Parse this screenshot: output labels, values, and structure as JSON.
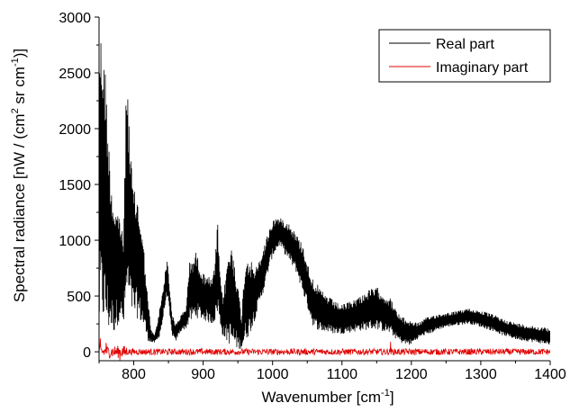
{
  "chart_data": {
    "type": "line",
    "xlabel_main": "Wavenumber [cm",
    "xlabel_sup": "-1",
    "xlabel_end": "]",
    "ylabel_main": "Spectral radiance [nW / (cm",
    "ylabel_sup1": "2",
    "ylabel_mid": " sr cm",
    "ylabel_sup2": "-1",
    "ylabel_end": ")]",
    "xlim": [
      750,
      1400
    ],
    "ylim": [
      -80,
      3000
    ],
    "x_ticks": [
      800,
      900,
      1000,
      1100,
      1200,
      1300,
      1400
    ],
    "y_ticks": [
      0,
      500,
      1000,
      1500,
      2000,
      2500,
      3000
    ],
    "grid": false,
    "legend_position": "top-right",
    "series": [
      {
        "name": "Real part",
        "color": "#000000",
        "envelope_x": [
          750,
          752,
          755,
          758,
          760,
          763,
          766,
          770,
          775,
          780,
          785,
          790,
          795,
          800,
          805,
          810,
          815,
          820,
          825,
          830,
          835,
          840,
          845,
          848,
          851,
          855,
          860,
          865,
          870,
          875,
          880,
          885,
          890,
          895,
          900,
          905,
          910,
          915,
          918,
          921,
          924,
          928,
          932,
          936,
          940,
          944,
          948,
          952,
          955,
          958,
          962,
          966,
          970,
          975,
          980,
          985,
          990,
          995,
          1000,
          1005,
          1010,
          1015,
          1020,
          1025,
          1030,
          1035,
          1040,
          1045,
          1050,
          1055,
          1060,
          1065,
          1070,
          1080,
          1090,
          1100,
          1110,
          1120,
          1130,
          1140,
          1150,
          1155,
          1160,
          1165,
          1170,
          1180,
          1190,
          1200,
          1210,
          1220,
          1230,
          1240,
          1250,
          1260,
          1270,
          1280,
          1290,
          1300,
          1310,
          1320,
          1330,
          1340,
          1350,
          1360,
          1370,
          1380,
          1390,
          1400
        ],
        "envelope_upper": [
          2950,
          2900,
          2800,
          2600,
          2500,
          2000,
          1700,
          1400,
          1300,
          1250,
          1000,
          2640,
          1800,
          1450,
          1400,
          1200,
          900,
          500,
          200,
          150,
          300,
          500,
          700,
          850,
          650,
          350,
          250,
          300,
          350,
          380,
          800,
          850,
          900,
          800,
          700,
          720,
          650,
          700,
          900,
          1180,
          700,
          500,
          650,
          900,
          950,
          900,
          700,
          500,
          300,
          600,
          900,
          850,
          800,
          750,
          800,
          900,
          1000,
          1100,
          1180,
          1210,
          1200,
          1190,
          1180,
          1150,
          1100,
          1050,
          1000,
          950,
          800,
          700,
          650,
          600,
          550,
          500,
          450,
          420,
          450,
          480,
          520,
          560,
          580,
          560,
          520,
          500,
          480,
          350,
          300,
          280,
          260,
          300,
          330,
          340,
          350,
          360,
          370,
          390,
          380,
          370,
          350,
          330,
          300,
          280,
          260,
          250,
          240,
          230,
          220,
          210
        ],
        "envelope_lower": [
          100,
          300,
          250,
          200,
          200,
          150,
          200,
          150,
          200,
          300,
          200,
          400,
          350,
          300,
          300,
          250,
          200,
          100,
          80,
          80,
          100,
          200,
          400,
          500,
          350,
          150,
          80,
          150,
          200,
          200,
          250,
          280,
          300,
          300,
          280,
          270,
          250,
          250,
          280,
          350,
          250,
          150,
          100,
          80,
          50,
          30,
          20,
          20,
          30,
          50,
          100,
          150,
          200,
          300,
          400,
          500,
          600,
          750,
          850,
          900,
          950,
          900,
          850,
          800,
          750,
          700,
          600,
          500,
          400,
          300,
          200,
          200,
          180,
          170,
          160,
          160,
          170,
          180,
          190,
          200,
          200,
          190,
          180,
          170,
          160,
          100,
          60,
          60,
          120,
          150,
          170,
          200,
          220,
          230,
          240,
          250,
          240,
          220,
          200,
          180,
          150,
          130,
          110,
          100,
          90,
          80,
          70,
          60
        ]
      },
      {
        "name": "Imaginary part",
        "color": "#e00000",
        "baseline": 0,
        "noise_amplitude": 35,
        "spikes": [
          {
            "x": 752,
            "y": 120
          },
          {
            "x": 760,
            "y": 80
          },
          {
            "x": 780,
            "y": -80
          },
          {
            "x": 1170,
            "y": 90
          }
        ]
      }
    ]
  }
}
